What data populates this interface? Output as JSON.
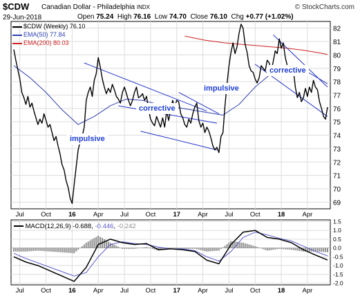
{
  "header": {
    "symbol": "$CDW",
    "name": "Canadian Dollar - Philadelphia",
    "exchange": "INDX",
    "date": "29-Jun-2018",
    "open_label": "Open",
    "open": "75.24",
    "high_label": "High",
    "high": "76.16",
    "low_label": "Low",
    "low": "74.70",
    "close_label": "Close",
    "close": "76.10",
    "chg_label": "Chg",
    "chg": "+0.77 (+1.02%)",
    "source": "© StockCharts.com"
  },
  "legend": {
    "price": "$CDW (Weekly) 76.10",
    "ema50": "EMA(50) 77.84",
    "ema200": "EMA(200) 80.03"
  },
  "macd_legend": {
    "label": "MACD(12,26,9)",
    "macd": "-0.688",
    "signal": "-0.446",
    "hist": "-0.242"
  },
  "annotations": {
    "impulsive_1": "impulsive",
    "corrective_1": "corrective",
    "impulsive_2": "impulsive",
    "corrective_2": "corrective"
  },
  "colors": {
    "price": "#000000",
    "ema50": "#2e3fb0",
    "ema200": "#cc2020",
    "trendline": "#2433cc",
    "macd": "#000000",
    "signal": "#5a5acc",
    "histogram": "#8f8f8f",
    "grid": "#dcdcdc"
  },
  "chart_data": [
    {
      "type": "line",
      "title": "$CDW Canadian Dollar - Philadelphia INDX (Weekly)",
      "x_ticks": [
        "Jul",
        "Oct",
        "16",
        "Apr",
        "Jul",
        "Oct",
        "17",
        "Apr",
        "Jul",
        "Oct",
        "18",
        "Apr"
      ],
      "y_ticks": [
        69,
        70,
        71,
        72,
        73,
        74,
        75,
        76,
        77,
        78,
        79,
        80,
        81,
        82
      ],
      "ylim": [
        68.5,
        82.5
      ],
      "grid": true,
      "legend_position": "top-left",
      "series": [
        {
          "name": "$CDW (Weekly)",
          "x": [
            0,
            1,
            2,
            3,
            4,
            5,
            6,
            7,
            8,
            9,
            10,
            11,
            12,
            13,
            14,
            15,
            16,
            17,
            18,
            19,
            20,
            21,
            22,
            23,
            24,
            25,
            26,
            27,
            28,
            29,
            30,
            31,
            32,
            33,
            34,
            35,
            36,
            37,
            38,
            39,
            40,
            41,
            42,
            43,
            44,
            45,
            46,
            47,
            48,
            49,
            50,
            51,
            52,
            53,
            54,
            55,
            56,
            57,
            58,
            59,
            60,
            61,
            62,
            63,
            64,
            65,
            66,
            67,
            68,
            69,
            70,
            71,
            72,
            73,
            74,
            75,
            76,
            77,
            78,
            79,
            80,
            81,
            82,
            83,
            84,
            85,
            86,
            87,
            88,
            89,
            90,
            91,
            92,
            93,
            94,
            95,
            96,
            97,
            98,
            99,
            100,
            101,
            102,
            103,
            104,
            105,
            106,
            107,
            108,
            109,
            110,
            111,
            112,
            113,
            114,
            115,
            116,
            117,
            118,
            119,
            120,
            121,
            122,
            123,
            124,
            125,
            126,
            127,
            128,
            129,
            130,
            131,
            132,
            133,
            134,
            135,
            136,
            137,
            138,
            139,
            140,
            141,
            142,
            143,
            144,
            145,
            146,
            147,
            148,
            149,
            150,
            151,
            152,
            153,
            154,
            155,
            156
          ],
          "values": [
            80.4,
            79.6,
            78.9,
            78.2,
            77.2,
            76.8,
            76.3,
            76.9,
            76.1,
            76.4,
            75.8,
            75.3,
            74.8,
            75.2,
            74.9,
            75.6,
            75.1,
            74.6,
            74.8,
            74.2,
            73.6,
            73.9,
            73.2,
            72.6,
            71.8,
            71.4,
            70.6,
            70.1,
            69.3,
            68.9,
            70.3,
            71.6,
            72.9,
            73.5,
            73.9,
            74.6,
            76.6,
            77.2,
            77.6,
            76.9,
            78.1,
            78.6,
            79.8,
            79.1,
            78.2,
            77.6,
            77.1,
            77.5,
            77.2,
            77.8,
            77.4,
            76.9,
            76.7,
            76.4,
            77.2,
            77.6,
            77.1,
            76.6,
            76.2,
            76.6,
            77.2,
            77.6,
            76.8,
            76.9,
            77.1,
            76.6,
            76.9,
            75.9,
            75.2,
            74.9,
            74.7,
            75.4,
            75.0,
            74.6,
            75.3,
            74.6,
            75.8,
            75.1,
            75.9,
            76.6,
            76.1,
            76.6,
            76.5,
            75.6,
            75.3,
            74.8,
            74.6,
            75.2,
            74.9,
            75.6,
            76.1,
            76.4,
            75.1,
            74.6,
            74.9,
            74.2,
            74.6,
            74.3,
            73.8,
            73.2,
            72.9,
            73.1,
            72.7,
            73.9,
            74.2,
            76.2,
            77.8,
            79.2,
            80.2,
            80.9,
            80.1,
            80.6,
            81.6,
            82.3,
            82.0,
            80.8,
            80.2,
            79.2,
            78.8,
            78.7,
            78.2,
            77.9,
            78.3,
            79.2,
            79.0,
            78.8,
            79.6,
            79.4,
            78.8,
            79.5,
            80.3,
            80.1,
            81.2,
            80.5,
            80.9,
            79.8,
            79.2,
            78.7,
            79.1,
            78.9,
            77.6,
            76.8,
            77.2,
            76.5,
            76.8,
            77.5,
            76.9,
            77.6,
            77.2,
            78.1,
            77.6,
            77.4,
            76.5,
            76.0,
            75.4,
            75.2,
            76.1
          ]
        },
        {
          "name": "EMA(50)",
          "x": [
            0,
            8,
            16,
            24,
            32,
            40,
            48,
            56,
            64,
            72,
            80,
            88,
            96,
            104,
            112,
            120,
            128,
            136,
            144,
            152,
            156
          ],
          "values": [
            79.2,
            78.3,
            77.2,
            75.9,
            74.8,
            75.4,
            76.2,
            76.7,
            76.6,
            76.3,
            76.1,
            75.9,
            75.7,
            75.5,
            76.3,
            77.6,
            78.6,
            79.2,
            78.9,
            78.2,
            77.84
          ]
        },
        {
          "name": "EMA(200)",
          "x": [
            85,
            95,
            105,
            112,
            120,
            128,
            136,
            144,
            152,
            156
          ],
          "values": [
            81.4,
            81.1,
            80.9,
            80.8,
            80.7,
            80.6,
            80.5,
            80.35,
            80.15,
            80.03
          ]
        }
      ]
    },
    {
      "type": "line",
      "title": "MACD(12,26,9)",
      "y_ticks": [
        -2.0,
        -1.5,
        -1.0,
        -0.5,
        0.0,
        0.5,
        1.0,
        1.5
      ],
      "ylim": [
        -2.1,
        1.6
      ],
      "grid": true,
      "series": [
        {
          "name": "MACD",
          "x": [
            0,
            6,
            12,
            18,
            24,
            30,
            36,
            42,
            48,
            54,
            60,
            66,
            72,
            78,
            84,
            90,
            96,
            102,
            108,
            114,
            120,
            126,
            132,
            138,
            144,
            150,
            156
          ],
          "values": [
            -0.5,
            -0.8,
            -1.0,
            -1.3,
            -1.6,
            -1.9,
            -1.1,
            0.2,
            0.5,
            0.3,
            0.2,
            0.25,
            -0.1,
            -0.05,
            -0.1,
            -0.2,
            -0.7,
            -0.9,
            0.2,
            0.9,
            1.0,
            0.6,
            0.5,
            0.3,
            -0.1,
            -0.4,
            -0.688
          ]
        },
        {
          "name": "Signal",
          "x": [
            0,
            6,
            12,
            18,
            24,
            30,
            36,
            42,
            48,
            54,
            60,
            66,
            72,
            78,
            84,
            90,
            96,
            102,
            108,
            114,
            120,
            126,
            132,
            138,
            144,
            150,
            156
          ],
          "values": [
            -0.3,
            -0.6,
            -0.85,
            -1.1,
            -1.35,
            -1.6,
            -1.4,
            -0.5,
            0.2,
            0.35,
            0.25,
            0.2,
            0.05,
            -0.05,
            -0.05,
            -0.15,
            -0.5,
            -0.75,
            -0.2,
            0.6,
            0.9,
            0.75,
            0.55,
            0.4,
            0.1,
            -0.2,
            -0.446
          ]
        },
        {
          "name": "Histogram",
          "x": [
            0,
            6,
            12,
            18,
            24,
            30,
            36,
            42,
            48,
            54,
            60,
            66,
            72,
            78,
            84,
            90,
            96,
            102,
            108,
            114,
            120,
            126,
            132,
            138,
            144,
            150,
            156
          ],
          "values": [
            -0.2,
            -0.2,
            -0.15,
            -0.2,
            -0.25,
            -0.3,
            0.3,
            0.7,
            0.3,
            -0.05,
            -0.05,
            0.05,
            -0.15,
            0.0,
            -0.05,
            -0.05,
            -0.2,
            -0.15,
            0.4,
            0.3,
            0.1,
            -0.15,
            -0.05,
            -0.1,
            -0.2,
            -0.2,
            -0.242
          ]
        }
      ]
    }
  ]
}
